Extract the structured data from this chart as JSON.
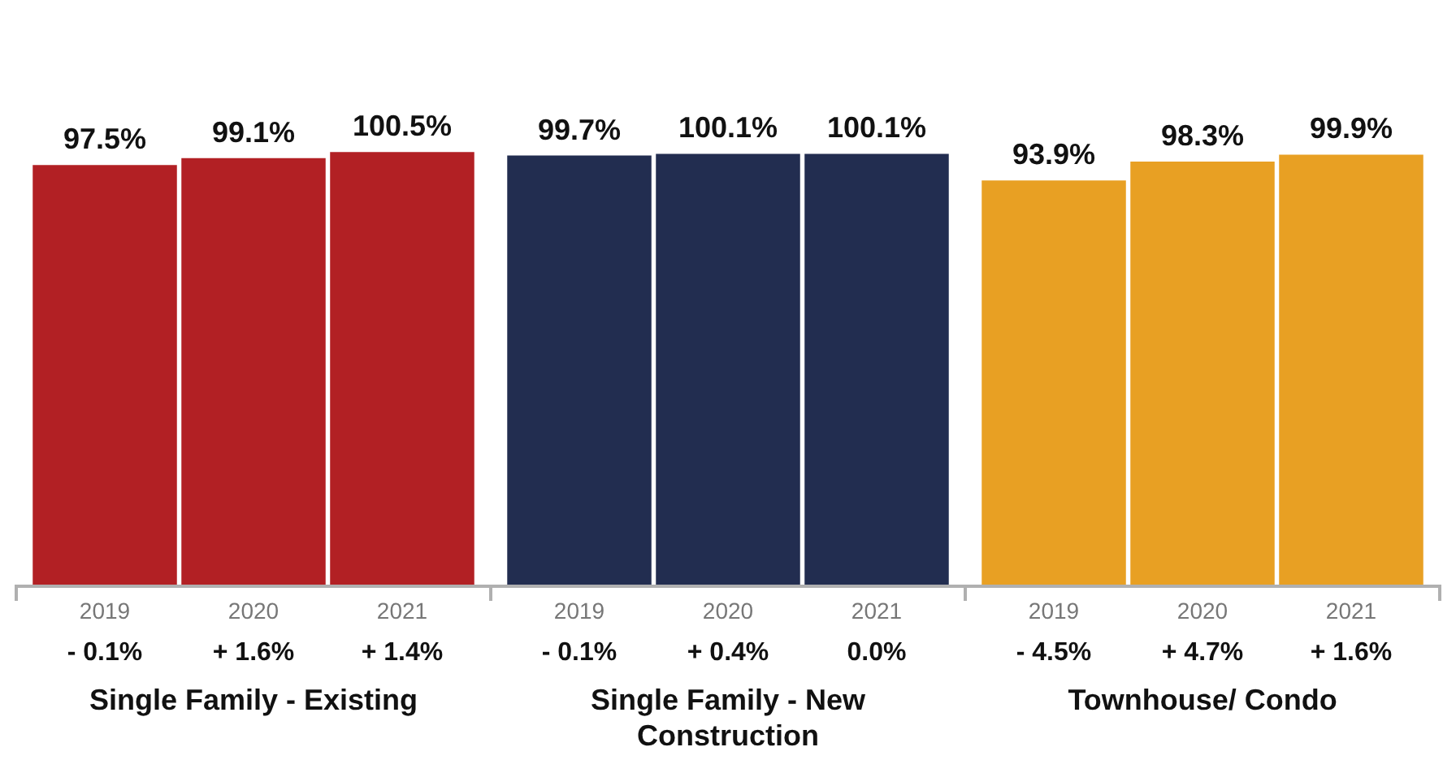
{
  "chart_data": {
    "type": "bar",
    "categories": [
      "Single Family - Existing",
      "Single Family - New Construction",
      "Townhouse/ Condo"
    ],
    "series": [
      {
        "name": "2019",
        "colors": [
          "#b22024",
          "#222d50",
          "#e8a023"
        ],
        "values": [
          97.5,
          99.7,
          93.9
        ],
        "value_labels": [
          "97.5%",
          "99.7%",
          "93.9%"
        ]
      },
      {
        "name": "2020",
        "colors": [
          "#b22024",
          "#222d50",
          "#e8a023"
        ],
        "values": [
          99.1,
          100.1,
          98.3
        ],
        "value_labels": [
          "99.1%",
          "100.1%",
          "98.3%"
        ]
      },
      {
        "name": "2021",
        "colors": [
          "#b22024",
          "#222d50",
          "#e8a023"
        ],
        "values": [
          100.5,
          100.1,
          99.9
        ],
        "value_labels": [
          "100.5%",
          "100.1%",
          "99.9%"
        ]
      }
    ],
    "annotations": [
      "- 0.1%",
      "+ 1.6%",
      "+ 1.4%",
      "- 0.1%",
      "+ 0.4%",
      "0.0%",
      "- 4.5%",
      "+ 4.7%",
      "+ 1.6%"
    ]
  }
}
